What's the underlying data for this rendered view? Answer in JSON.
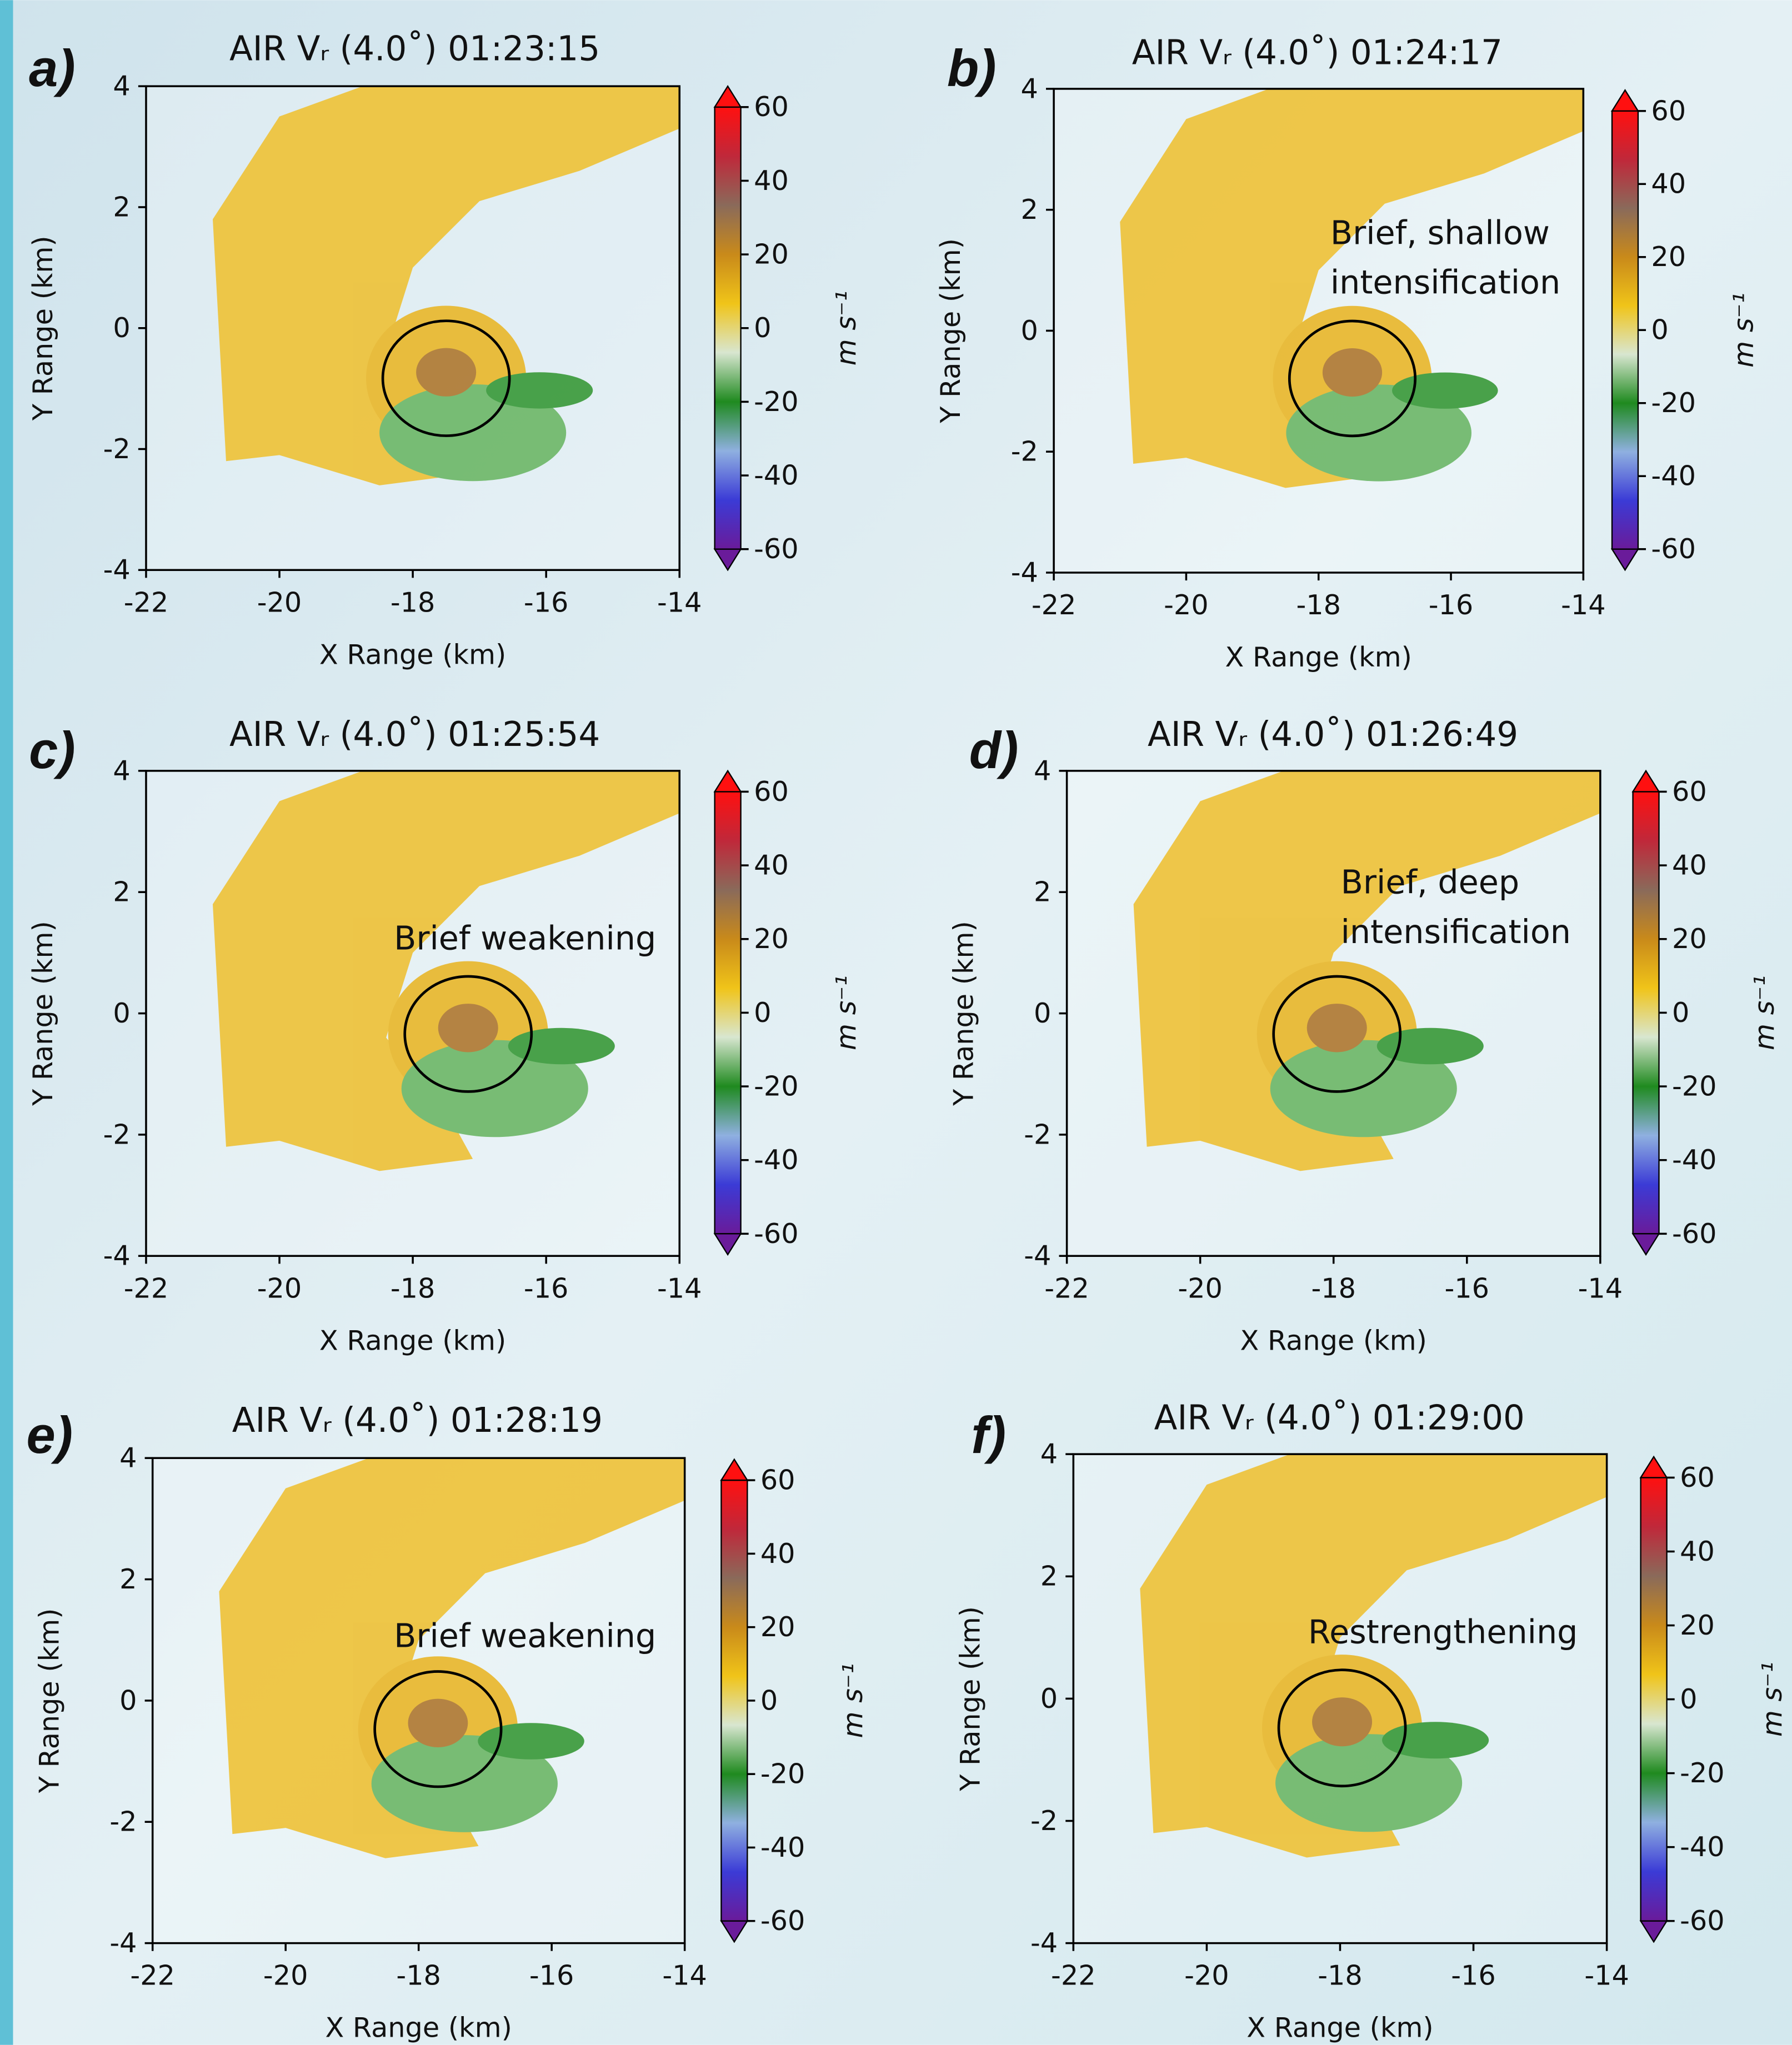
{
  "chart_data": [
    {
      "type": "heatmap",
      "panel_label": "a)",
      "title": "AIR Vᵣ (4.0˚) 01:23:15",
      "x_label": "X Range (km)",
      "y_label": "Y Range (km)",
      "xlim": [
        -22,
        -14
      ],
      "xticks": [
        -22,
        -20,
        -18,
        -16,
        -14
      ],
      "ylim": [
        -4,
        4
      ],
      "yticks": [
        -4,
        -2,
        0,
        2,
        4
      ],
      "circle": {
        "x": -17.5,
        "y": -0.83,
        "r": 0.95
      },
      "colorbar": {
        "lim": [
          -60,
          60
        ],
        "ticks": [
          60,
          40,
          20,
          0,
          -20,
          -40,
          -60
        ],
        "label": "m s⁻¹",
        "colors": [
          "#6a1b9a",
          "#3b3bd6",
          "#8fb0e0",
          "#1f8a1f",
          "#d8e6d0",
          "#f0c419",
          "#c98a1a",
          "#8a6a5a",
          "#c0283a",
          "#ff1010"
        ]
      }
    },
    {
      "type": "heatmap",
      "panel_label": "b)",
      "title": "AIR Vᵣ (4.0˚) 01:24:17",
      "x_label": "X Range (km)",
      "y_label": "Y Range (km)",
      "xlim": [
        -22,
        -14
      ],
      "xticks": [
        -22,
        -20,
        -18,
        -16,
        -14
      ],
      "ylim": [
        -4,
        4
      ],
      "yticks": [
        -4,
        -2,
        0,
        2,
        4
      ],
      "circle": {
        "x": -17.49,
        "y": -0.79,
        "r": 0.95
      },
      "annotation": [
        "Brief, shallow",
        "intensification"
      ],
      "colorbar": {
        "lim": [
          -60,
          60
        ],
        "ticks": [
          60,
          40,
          20,
          0,
          -20,
          -40,
          -60
        ],
        "label": "m s⁻¹",
        "colors": [
          "#6a1b9a",
          "#3b3bd6",
          "#8fb0e0",
          "#1f8a1f",
          "#d8e6d0",
          "#f0c419",
          "#c98a1a",
          "#8a6a5a",
          "#c0283a",
          "#ff1010"
        ]
      }
    },
    {
      "type": "heatmap",
      "panel_label": "c)",
      "title": "AIR Vᵣ (4.0˚) 01:25:54",
      "x_label": "X Range (km)",
      "y_label": "Y Range (km)",
      "xlim": [
        -22,
        -14
      ],
      "xticks": [
        -22,
        -20,
        -18,
        -16,
        -14
      ],
      "ylim": [
        -4,
        4
      ],
      "yticks": [
        -4,
        -2,
        0,
        2,
        4
      ],
      "circle": {
        "x": -17.17,
        "y": -0.34,
        "r": 0.95
      },
      "annotation": [
        "Brief weakening"
      ],
      "colorbar": {
        "lim": [
          -60,
          60
        ],
        "ticks": [
          60,
          40,
          20,
          0,
          -20,
          -40,
          -60
        ],
        "label": "m s⁻¹",
        "colors": [
          "#6a1b9a",
          "#3b3bd6",
          "#8fb0e0",
          "#1f8a1f",
          "#d8e6d0",
          "#f0c419",
          "#c98a1a",
          "#8a6a5a",
          "#c0283a",
          "#ff1010"
        ]
      }
    },
    {
      "type": "heatmap",
      "panel_label": "d)",
      "title": "AIR Vᵣ (4.0˚) 01:26:49",
      "x_label": "X Range (km)",
      "y_label": "Y Range (km)",
      "xlim": [
        -22,
        -14
      ],
      "xticks": [
        -22,
        -20,
        -18,
        -16,
        -14
      ],
      "ylim": [
        -4,
        4
      ],
      "yticks": [
        -4,
        -2,
        0,
        2,
        4
      ],
      "circle": {
        "x": -17.95,
        "y": -0.34,
        "r": 0.95
      },
      "annotation": [
        "Brief, deep",
        "intensification"
      ],
      "colorbar": {
        "lim": [
          -60,
          60
        ],
        "ticks": [
          60,
          40,
          20,
          0,
          -20,
          -40,
          -60
        ],
        "label": "m s⁻¹",
        "colors": [
          "#6a1b9a",
          "#3b3bd6",
          "#8fb0e0",
          "#1f8a1f",
          "#d8e6d0",
          "#f0c419",
          "#c98a1a",
          "#8a6a5a",
          "#c0283a",
          "#ff1010"
        ]
      }
    },
    {
      "type": "heatmap",
      "panel_label": "e)",
      "title": "AIR Vᵣ (4.0˚) 01:28:19",
      "x_label": "X Range (km)",
      "y_label": "Y Range (km)",
      "xlim": [
        -22,
        -14
      ],
      "xticks": [
        -22,
        -20,
        -18,
        -16,
        -14
      ],
      "ylim": [
        -4,
        4
      ],
      "yticks": [
        -4,
        -2,
        0,
        2,
        4
      ],
      "circle": {
        "x": -17.71,
        "y": -0.47,
        "r": 0.95
      },
      "annotation": [
        "Brief weakening"
      ],
      "colorbar": {
        "lim": [
          -60,
          60
        ],
        "ticks": [
          60,
          40,
          20,
          0,
          -20,
          -40,
          -60
        ],
        "label": "m s⁻¹",
        "colors": [
          "#6a1b9a",
          "#3b3bd6",
          "#8fb0e0",
          "#1f8a1f",
          "#d8e6d0",
          "#f0c419",
          "#c98a1a",
          "#8a6a5a",
          "#c0283a",
          "#ff1010"
        ]
      }
    },
    {
      "type": "heatmap",
      "panel_label": "f)",
      "title": "AIR Vᵣ (4.0˚) 01:29:00",
      "x_label": "X Range (km)",
      "y_label": "Y Range (km)",
      "xlim": [
        -22,
        -14
      ],
      "xticks": [
        -22,
        -20,
        -18,
        -16,
        -14
      ],
      "ylim": [
        -4,
        4
      ],
      "yticks": [
        -4,
        -2,
        0,
        2,
        4
      ],
      "circle": {
        "x": -17.97,
        "y": -0.48,
        "r": 0.95
      },
      "annotation": [
        "Restrengthening"
      ],
      "colorbar": {
        "lim": [
          -60,
          60
        ],
        "ticks": [
          60,
          40,
          20,
          0,
          -20,
          -40,
          -60
        ],
        "label": "m s⁻¹",
        "colors": [
          "#6a1b9a",
          "#3b3bd6",
          "#8fb0e0",
          "#1f8a1f",
          "#d8e6d0",
          "#f0c419",
          "#c98a1a",
          "#8a6a5a",
          "#c0283a",
          "#ff1010"
        ]
      }
    }
  ]
}
